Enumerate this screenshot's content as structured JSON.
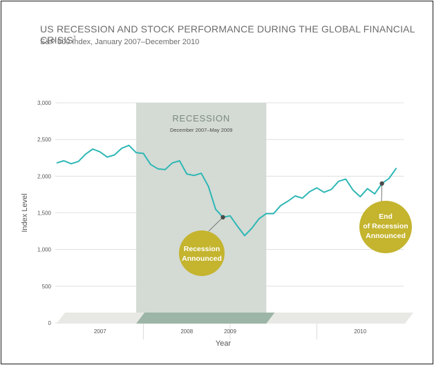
{
  "chart_data": {
    "type": "line",
    "title": "US RECESSION AND STOCK PERFORMANCE DURING THE GLOBAL FINANCIAL CRISIS",
    "title_footnote": "1",
    "subtitle": "S&P 500 Index, January 2007–December 2010",
    "xlabel": "Year",
    "ylabel": "Index Level",
    "ylim": [
      0,
      3000
    ],
    "yticks": [
      0,
      500,
      1000,
      1500,
      2000,
      2500,
      3000
    ],
    "ytick_labels": [
      "0",
      "500",
      "1,000",
      "1,500",
      "2,000",
      "2,500",
      "3,000"
    ],
    "xlim": [
      2007.0,
      2011.0
    ],
    "xtick_labels": [
      {
        "label": "2007",
        "x": 2007.5
      },
      {
        "label": "2008",
        "x": 2008.5
      },
      {
        "label": "2009",
        "x": 2009.0
      },
      {
        "label": "2010",
        "x": 2010.5
      }
    ],
    "grid": true,
    "line_color": "#2db7b5",
    "series": [
      {
        "x": [
          2007.0,
          2007.083,
          2007.167,
          2007.25,
          2007.333,
          2007.417,
          2007.5,
          2007.583,
          2007.667,
          2007.75,
          2007.833,
          2007.917,
          2008.0,
          2008.083,
          2008.167,
          2008.25,
          2008.333,
          2008.417,
          2008.5,
          2008.583,
          2008.667,
          2008.75,
          2008.833,
          2008.917,
          2009.0,
          2009.083,
          2009.167,
          2009.25,
          2009.333,
          2009.417,
          2009.5,
          2009.583,
          2009.667,
          2009.75,
          2009.833,
          2009.917,
          2010.0,
          2010.083,
          2010.167,
          2010.25,
          2010.333,
          2010.417,
          2010.5,
          2010.583,
          2010.667,
          2010.75,
          2010.833,
          2010.917
        ],
        "values": [
          2180,
          2210,
          2170,
          2200,
          2300,
          2370,
          2330,
          2260,
          2290,
          2380,
          2420,
          2320,
          2310,
          2160,
          2100,
          2090,
          2180,
          2210,
          2030,
          2010,
          2040,
          1860,
          1550,
          1440,
          1460,
          1320,
          1190,
          1290,
          1420,
          1490,
          1490,
          1600,
          1660,
          1730,
          1700,
          1790,
          1840,
          1780,
          1820,
          1930,
          1960,
          1810,
          1720,
          1830,
          1760,
          1900,
          1970,
          2110
        ]
      }
    ],
    "recession": {
      "label": "RECESSION",
      "sublabel": "December 2007–May 2009",
      "start": 2007.917,
      "end": 2009.417,
      "color": "#d2d8d2"
    },
    "annotations": [
      {
        "line1": "Recession",
        "line2": "Announced",
        "x": 2008.917,
        "value": 1440,
        "color": "#c4b42e"
      },
      {
        "line1": "End",
        "line2": "of Recession",
        "line3": "Announced",
        "x": 2010.75,
        "value": 1900,
        "color": "#c4b42e"
      }
    ]
  }
}
